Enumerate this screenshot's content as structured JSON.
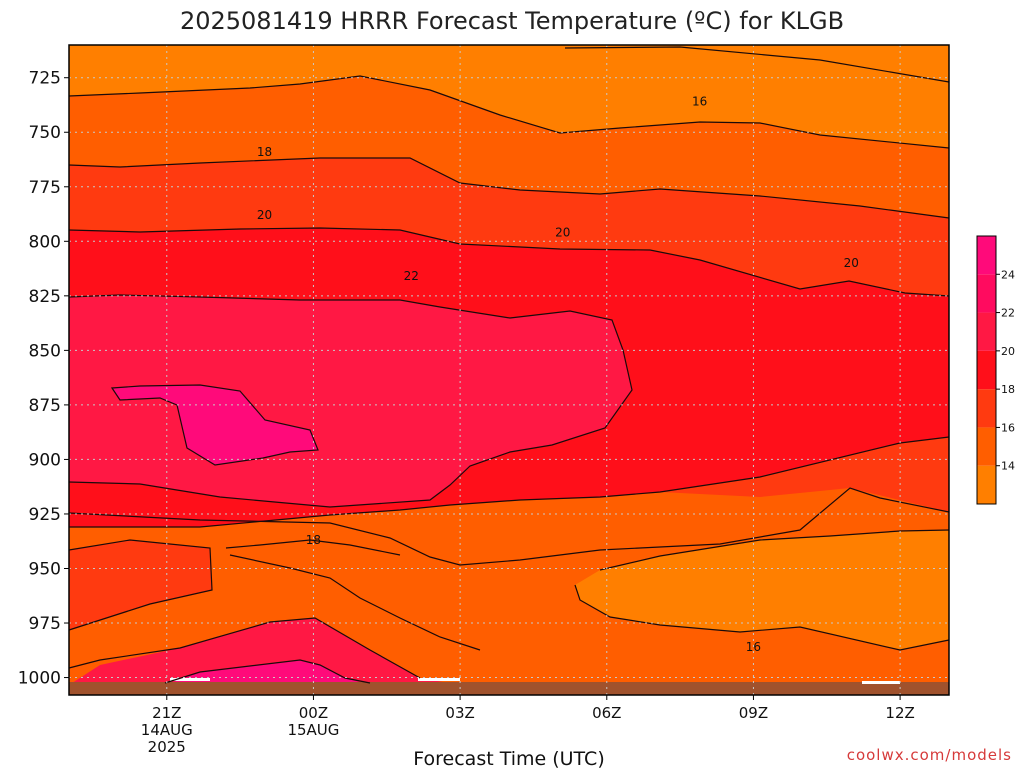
{
  "chart_data": {
    "type": "heatmap",
    "title": "2025081419 HRRR Forecast Temperature (ºC) for KLGB",
    "xlabel": "Forecast Time (UTC)",
    "ylabel": "",
    "x_ticks": [
      {
        "hour": 2,
        "lines": [
          "21Z",
          "14AUG",
          "2025"
        ]
      },
      {
        "hour": 5,
        "lines": [
          "00Z",
          "15AUG"
        ]
      },
      {
        "hour": 8,
        "lines": [
          "03Z"
        ]
      },
      {
        "hour": 11,
        "lines": [
          "06Z"
        ]
      },
      {
        "hour": 14,
        "lines": [
          "09Z"
        ]
      },
      {
        "hour": 17,
        "lines": [
          "12Z"
        ]
      }
    ],
    "xlim": [
      0,
      18
    ],
    "y_ticks": [
      725,
      750,
      775,
      800,
      825,
      850,
      875,
      900,
      925,
      950,
      975,
      1000
    ],
    "ylim": [
      1008,
      710
    ],
    "y_reversed": true,
    "grid": true,
    "contour_levels": [
      14,
      16,
      18,
      20,
      22,
      24
    ],
    "colorbar": {
      "ticks": [
        14,
        16,
        18,
        20,
        22,
        24
      ],
      "range": [
        12,
        26
      ],
      "bands": [
        {
          "from": 12,
          "to": 14,
          "color": "#ff7f00"
        },
        {
          "from": 14,
          "to": 16,
          "color": "#ff5e00"
        },
        {
          "from": 16,
          "to": 18,
          "color": "#ff3a10"
        },
        {
          "from": 18,
          "to": 20,
          "color": "#ff0f1a"
        },
        {
          "from": 20,
          "to": 22,
          "color": "#ff1844"
        },
        {
          "from": 22,
          "to": 24,
          "color": "#ff0b5f"
        },
        {
          "from": 24,
          "to": 26,
          "color": "#ff0a7a"
        }
      ]
    },
    "contour_labels": [
      {
        "value": "16",
        "hour": 12.9,
        "p": 736
      },
      {
        "value": "18",
        "hour": 4.0,
        "p": 759
      },
      {
        "value": "20",
        "hour": 4.0,
        "p": 788
      },
      {
        "value": "20",
        "hour": 10.1,
        "p": 796
      },
      {
        "value": "20",
        "hour": 16.0,
        "p": 810
      },
      {
        "value": "22",
        "hour": 7.0,
        "p": 816
      },
      {
        "value": "18",
        "hour": 5.0,
        "p": 937
      },
      {
        "value": "16",
        "hour": 14.0,
        "p": 986
      }
    ],
    "fields": {
      "cool_top": {
        "value": "14-16 ºC",
        "p_top": 710,
        "p_bottom_range": [
          718,
          745
        ]
      },
      "warm_core": {
        "value": "22-24 ºC",
        "hours": [
          0,
          11.5
        ],
        "p": [
          816,
          906
        ]
      },
      "warmest_pocket": {
        "value": "24-26 ºC",
        "hours": [
          1,
          5
        ],
        "p": [
          856,
          895
        ]
      },
      "surface_warm": {
        "value": "20-22 ºC",
        "hours": [
          1,
          6
        ],
        "p": [
          995,
          1008
        ]
      }
    },
    "ground_color": "#a0522d"
  },
  "credit": "coolwx.com/models"
}
